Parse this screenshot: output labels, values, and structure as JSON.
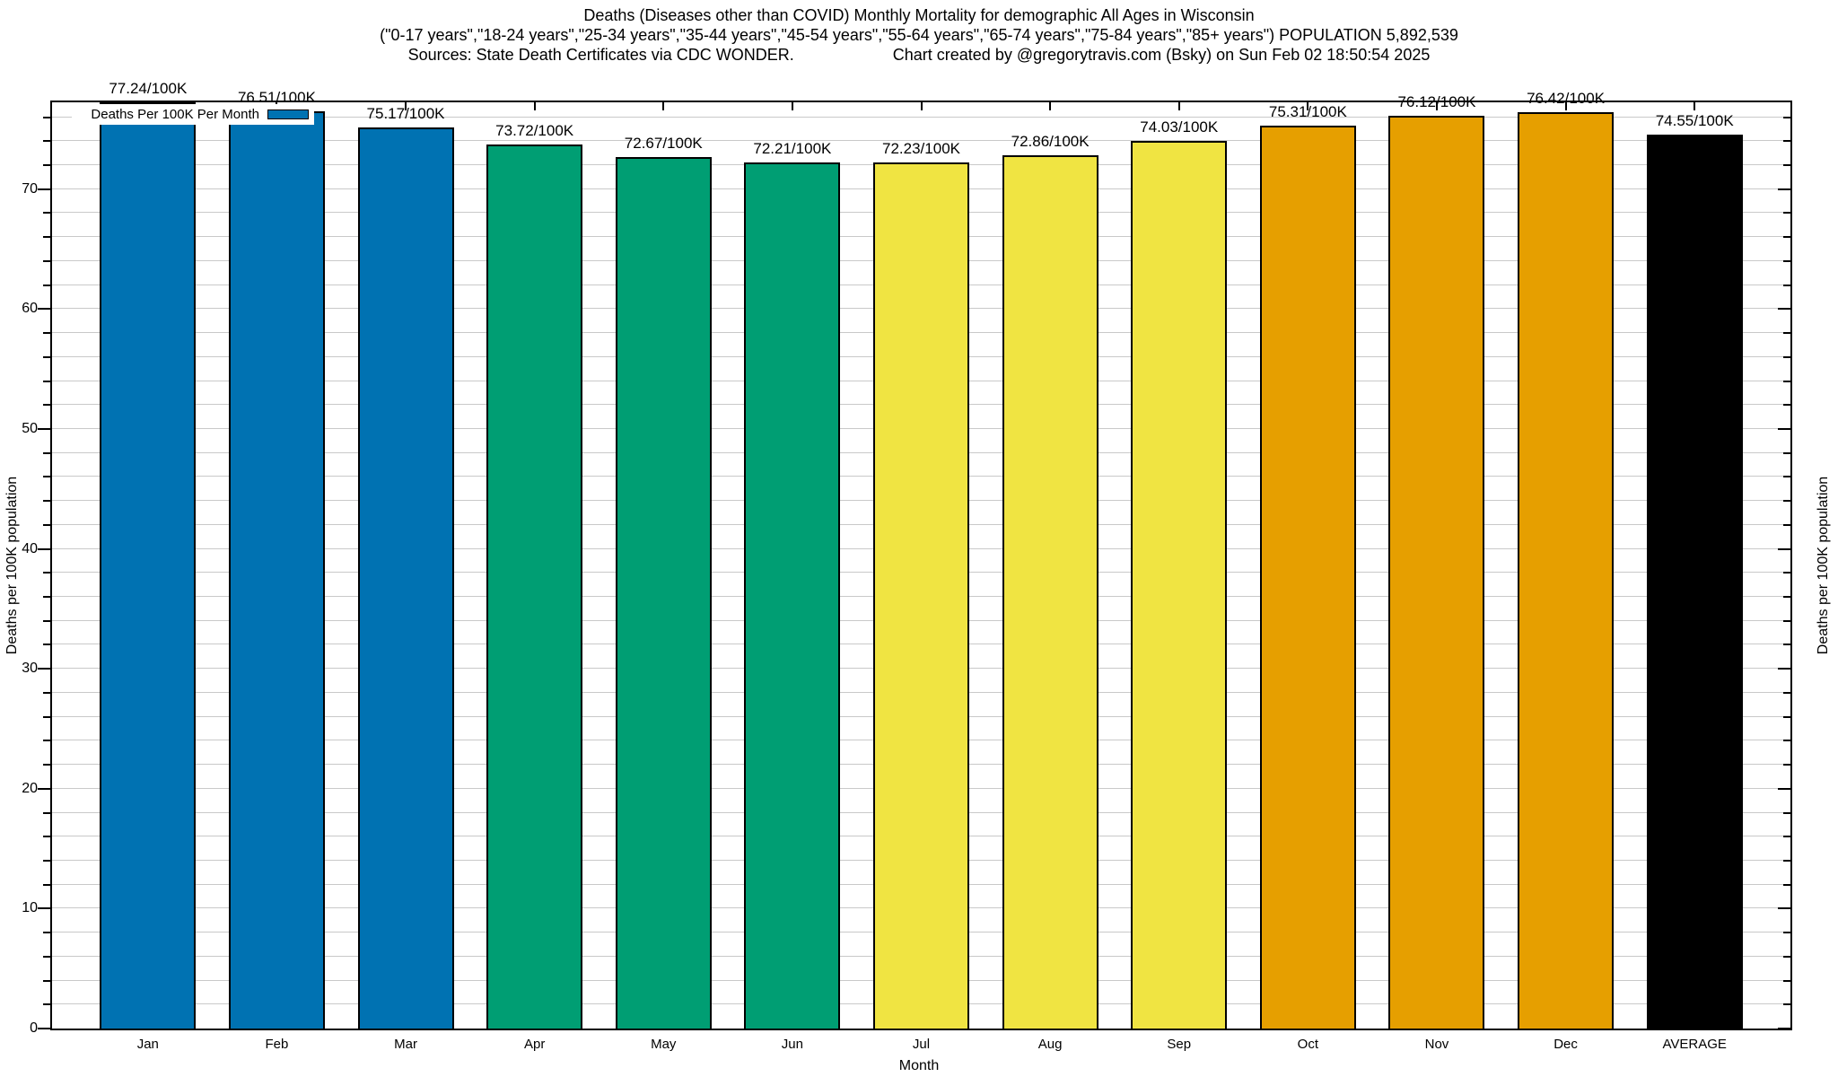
{
  "title": {
    "line1": "Deaths (Diseases other than COVID) Monthly Mortality for demographic All Ages in Wisconsin",
    "line2": "(\"0-17 years\",\"18-24 years\",\"25-34 years\",\"35-44 years\",\"45-54 years\",\"55-64 years\",\"65-74 years\",\"75-84 years\",\"85+ years\") POPULATION 5,892,539",
    "line3_left": "Sources: State Death Certificates via CDC WONDER.",
    "line3_right": "Chart created by @gregorytravis.com (Bsky) on Sun Feb 02 18:50:54 2025"
  },
  "legend": {
    "label": "Deaths Per 100K Per Month",
    "swatch_color": "#0072B2"
  },
  "axes": {
    "y_left_label": "Deaths per 100K population",
    "y_right_label": "Deaths per 100K population",
    "x_label": "Month",
    "y_major_ticks": [
      0,
      10,
      20,
      30,
      40,
      50,
      60,
      70
    ],
    "y_minor_step": 2,
    "y_min": 0,
    "y_max": 77.24,
    "grid": "horizontal-minor",
    "legend_position": "top-left-inside"
  },
  "chart_data": {
    "type": "bar",
    "title": "Deaths (Diseases other than COVID) Monthly Mortality for demographic All Ages in Wisconsin",
    "xlabel": "Month",
    "ylabel": "Deaths per 100K population",
    "ylim": [
      0,
      77.24
    ],
    "categories": [
      "Jan",
      "Feb",
      "Mar",
      "Apr",
      "May",
      "Jun",
      "Jul",
      "Aug",
      "Sep",
      "Oct",
      "Nov",
      "Dec",
      "AVERAGE"
    ],
    "values": [
      77.24,
      76.51,
      75.17,
      73.72,
      72.67,
      72.21,
      72.23,
      72.86,
      74.03,
      75.31,
      76.12,
      76.42,
      74.55
    ],
    "bar_labels": [
      "77.24/100K",
      "76.51/100K",
      "75.17/100K",
      "73.72/100K",
      "72.67/100K",
      "72.21/100K",
      "72.23/100K",
      "72.86/100K",
      "74.03/100K",
      "75.31/100K",
      "76.12/100K",
      "76.42/100K",
      "74.55/100K"
    ],
    "bar_colors": [
      "#0072B2",
      "#0072B2",
      "#0072B2",
      "#009E73",
      "#009E73",
      "#009E73",
      "#F0E442",
      "#F0E442",
      "#F0E442",
      "#E69F00",
      "#E69F00",
      "#E69F00",
      "#000000"
    ],
    "series_name": "Deaths Per 100K Per Month"
  }
}
